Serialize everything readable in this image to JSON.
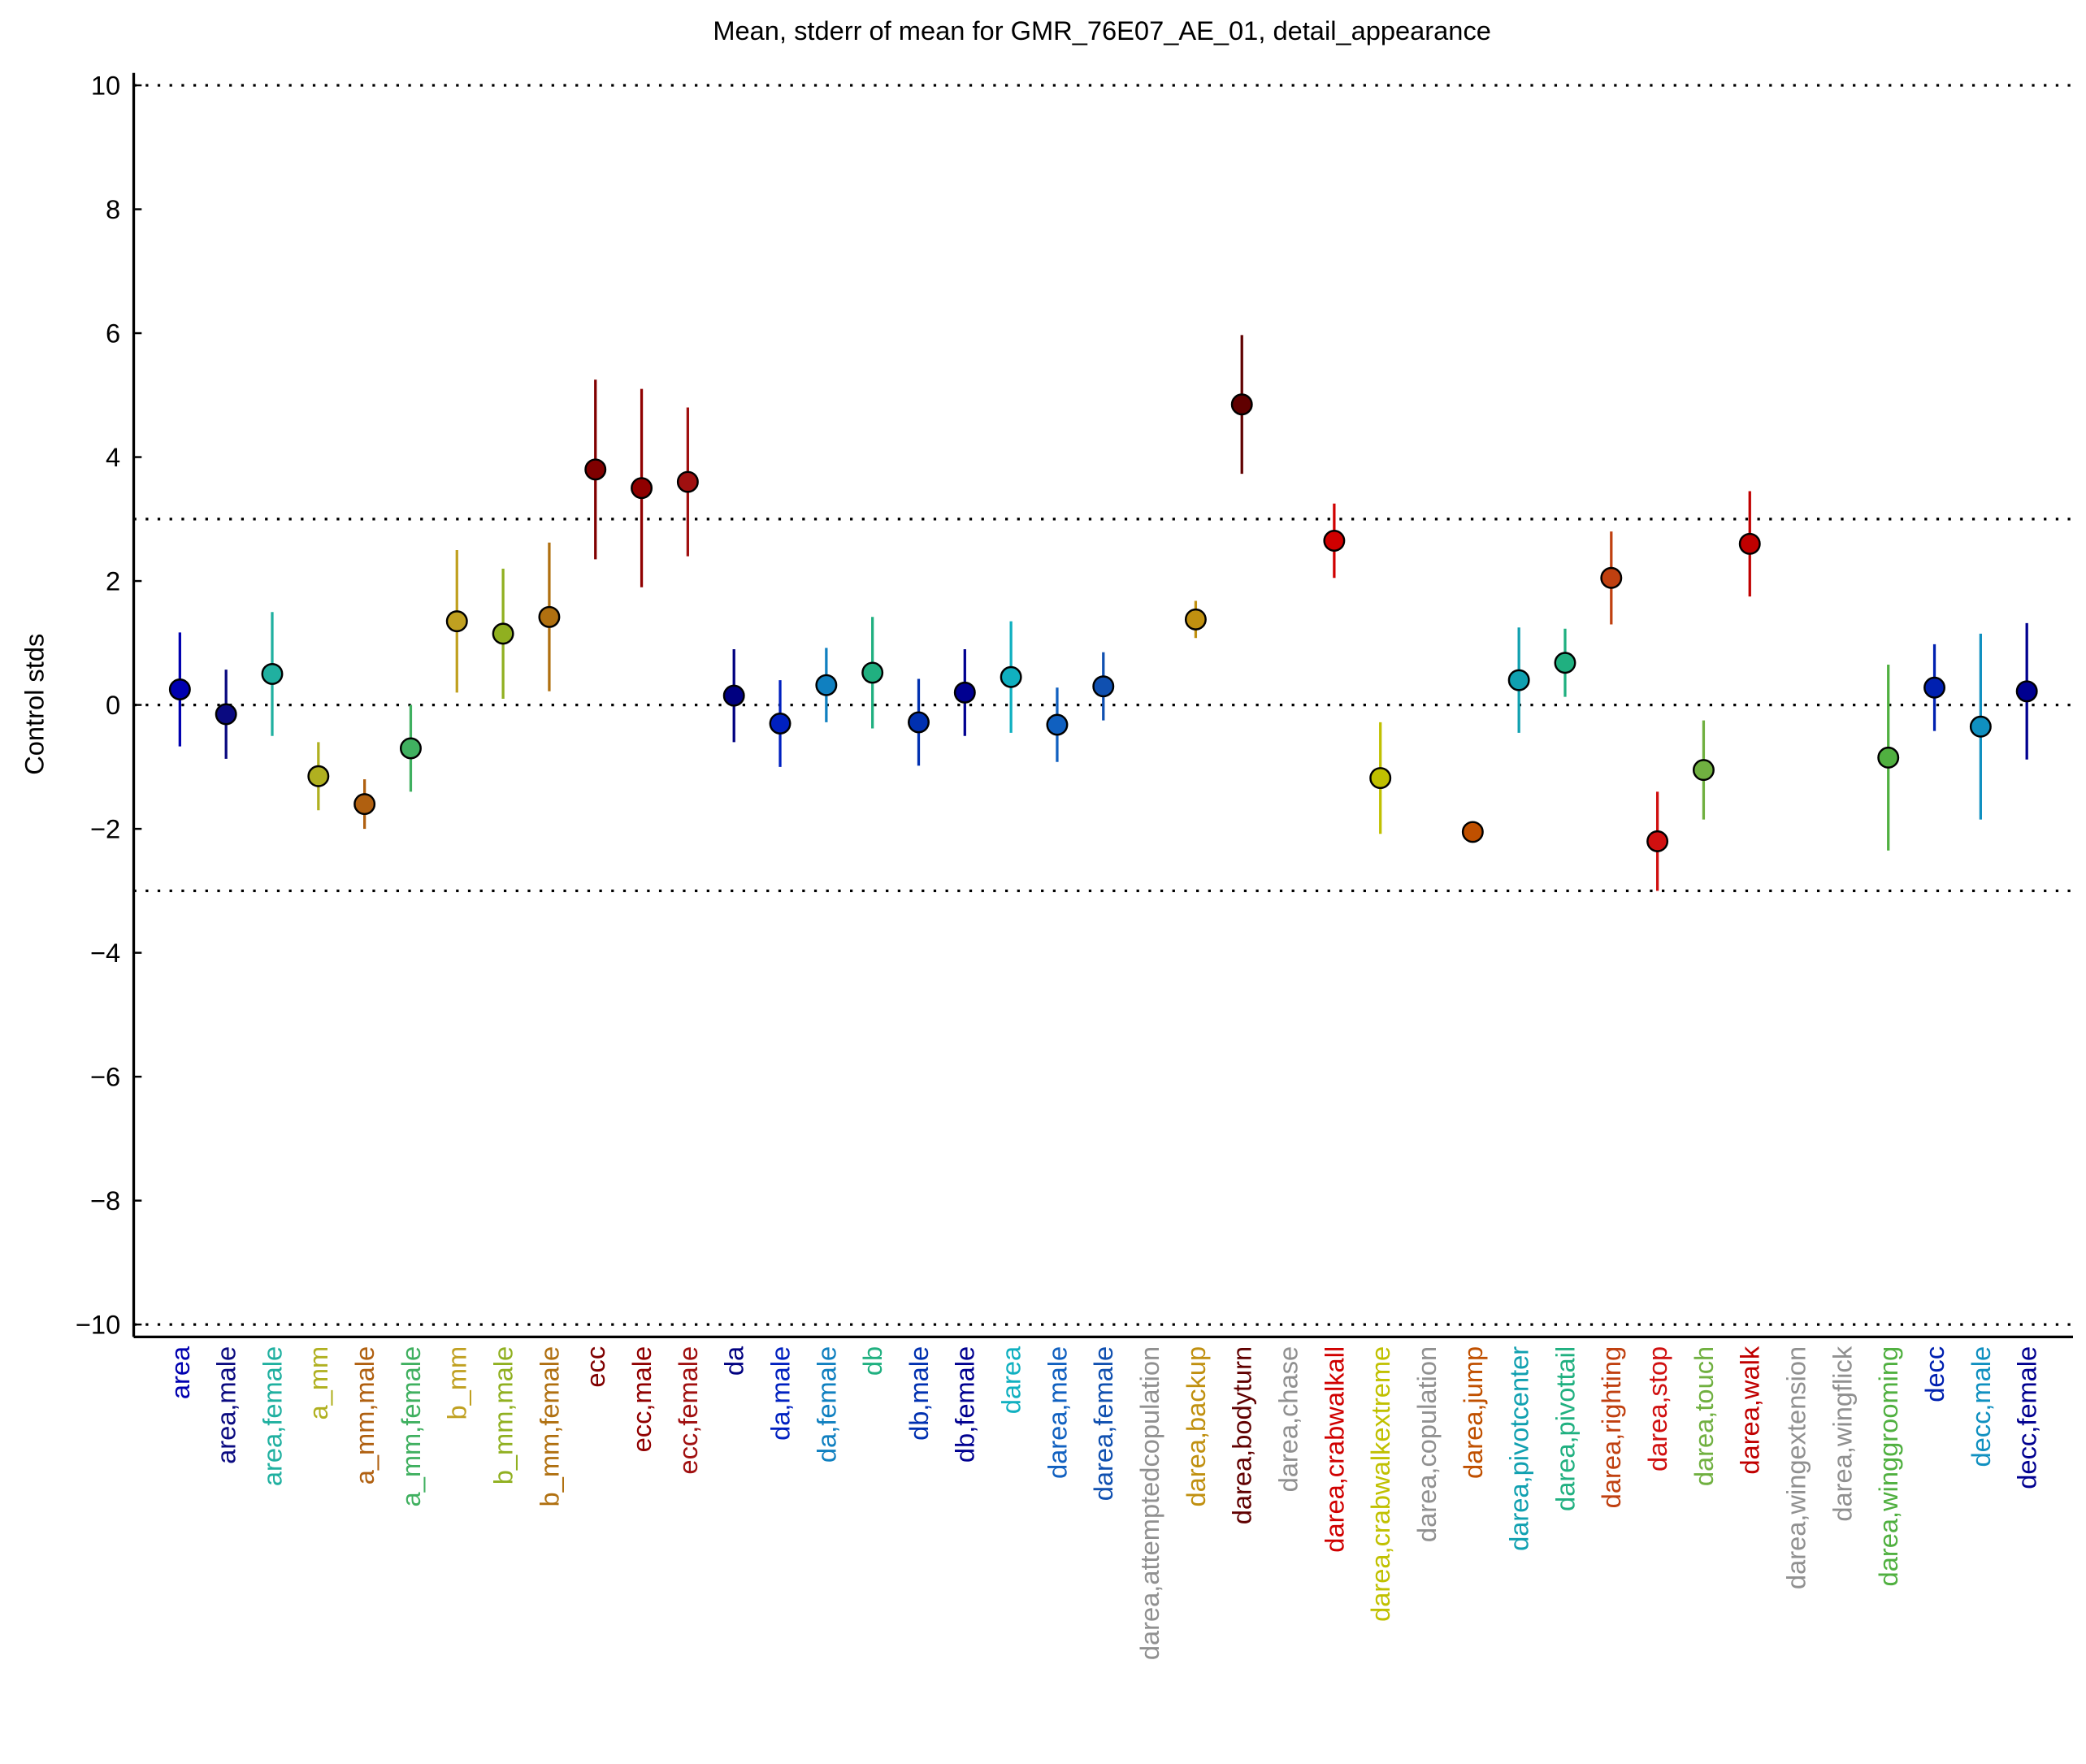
{
  "chart_data": {
    "type": "errorbar",
    "title": "Mean, stderr of mean for GMR_76E07_AE_01, detail_appearance",
    "y_label": "Control stds",
    "ylim": [
      -10.2,
      10.2
    ],
    "yticks": [
      {
        "value": -10,
        "label": "−10"
      },
      {
        "value": -8,
        "label": "−8"
      },
      {
        "value": -6,
        "label": "−6"
      },
      {
        "value": -4,
        "label": "−4"
      },
      {
        "value": -2,
        "label": "−2"
      },
      0,
      2,
      4,
      6,
      8,
      10
    ],
    "reference_lines": [
      -10,
      -3,
      0,
      3,
      10
    ],
    "categories": [
      "area",
      "area,male",
      "area,female",
      "a_mm",
      "a_mm,male",
      "a_mm,female",
      "b_mm",
      "b_mm,male",
      "b_mm,female",
      "ecc",
      "ecc,male",
      "ecc,female",
      "da",
      "da,male",
      "da,female",
      "db",
      "db,male",
      "db,female",
      "darea",
      "darea,male",
      "darea,female",
      "darea,attemptedcopulation",
      "darea,backup",
      "darea,bodyturn",
      "darea,chase",
      "darea,crabwalkall",
      "darea,crabwalkextreme",
      "darea,copulation",
      "darea,jump",
      "darea,pivotcenter",
      "darea,pivottail",
      "darea,righting",
      "darea,stop",
      "darea,touch",
      "darea,walk",
      "darea,wingextension",
      "darea,wingflick",
      "darea,winggrooming",
      "decc",
      "decc,male",
      "decc,female"
    ],
    "values": [
      0.25,
      -0.15,
      0.5,
      -1.15,
      -1.6,
      -0.7,
      1.35,
      1.15,
      1.42,
      3.8,
      3.5,
      3.6,
      0.15,
      -0.3,
      0.32,
      0.52,
      -0.28,
      0.2,
      0.45,
      -0.32,
      0.3,
      null,
      1.38,
      4.85,
      null,
      2.65,
      -1.18,
      null,
      -2.05,
      0.4,
      0.68,
      2.05,
      -2.2,
      -1.05,
      2.6,
      null,
      null,
      -0.85,
      0.28,
      -0.35,
      0.22
    ],
    "errors": [
      0.92,
      0.72,
      1.0,
      0.55,
      0.4,
      0.7,
      1.15,
      1.05,
      1.2,
      1.45,
      1.6,
      1.2,
      0.75,
      0.7,
      0.6,
      0.9,
      0.7,
      0.7,
      0.9,
      0.6,
      0.55,
      null,
      0.3,
      1.12,
      null,
      0.6,
      0.9,
      null,
      0.15,
      0.85,
      0.55,
      0.75,
      0.8,
      0.8,
      0.85,
      null,
      null,
      1.5,
      0.7,
      1.5,
      1.1
    ],
    "colors": [
      "#0000b0",
      "#0a0a80",
      "#20b0a0",
      "#b0b020",
      "#b06010",
      "#40b060",
      "#c0a020",
      "#90b020",
      "#b07010",
      "#800000",
      "#900000",
      "#a01010",
      "#000080",
      "#0020c0",
      "#1080c0",
      "#20b080",
      "#0030b0",
      "#000090",
      "#10b0c0",
      "#1060c0",
      "#1050b0",
      "#909090",
      "#c09010",
      "#600000",
      "#909090",
      "#d00000",
      "#c0c000",
      "#909090",
      "#c05000",
      "#10a0b0",
      "#20b080",
      "#c04010",
      "#d01010",
      "#70b040",
      "#c00000",
      "#909090",
      "#909090",
      "#50b040",
      "#0020b0",
      "#1090c0",
      "#000090"
    ]
  }
}
